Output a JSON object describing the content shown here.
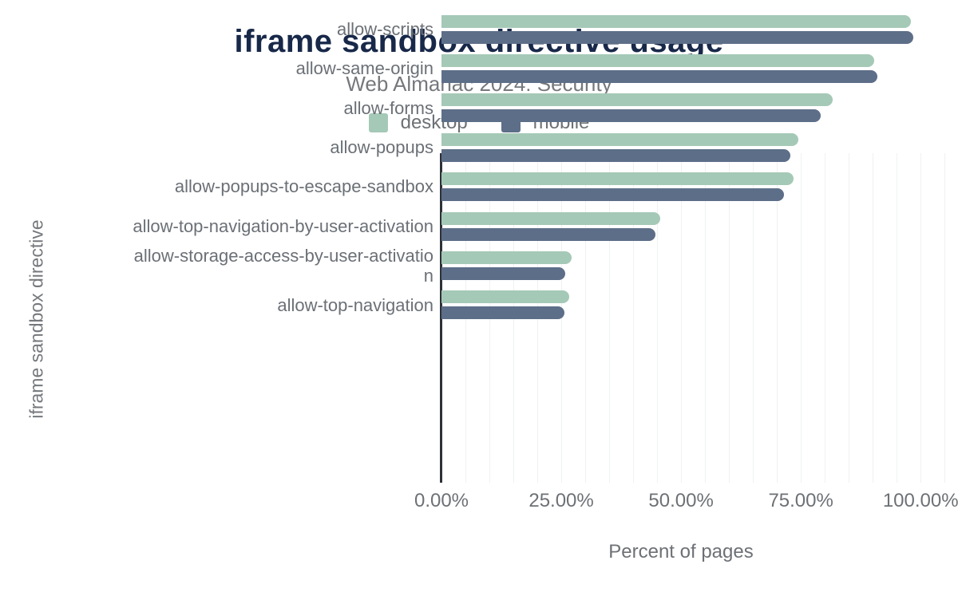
{
  "title": "iframe sandbox directive usage",
  "subtitle": "Web Almanac 2024: Security",
  "x_axis_title": "Percent of pages",
  "y_axis_title": "iframe sandbox directive",
  "colors": {
    "title": "#182849",
    "desktop_bar": "#a5c9b7",
    "mobile_bar": "#5d6e88",
    "axis_line": "#2d3138",
    "gridline": "#f0f1f2",
    "muted_text": "#6d7175"
  },
  "chart_data": {
    "type": "bar",
    "orientation": "horizontal",
    "title": "iframe sandbox directive usage",
    "subtitle": "Web Almanac 2024: Security",
    "xlabel": "Percent of pages",
    "ylabel": "iframe sandbox directive",
    "xlim": [
      0,
      105.3
    ],
    "x_tick_values": [
      0,
      25,
      50,
      75,
      100
    ],
    "x_tick_labels": [
      "0.00%",
      "25.00%",
      "50.00%",
      "75.00%",
      "100.00%"
    ],
    "minor_gridline_step": 5,
    "grid": "vertical-only",
    "legend_position": "top",
    "categories": [
      "allow-scripts",
      "allow-same-origin",
      "allow-forms",
      "allow-popups",
      "allow-popups-to-escape-sandbox",
      "allow-top-navigation-by-user-activation",
      "allow-storage-access-by-user-activation",
      "allow-top-navigation"
    ],
    "category_label_lines": [
      [
        "allow-scripts"
      ],
      [
        "allow-same-origin"
      ],
      [
        "allow-forms"
      ],
      [
        "allow-popups"
      ],
      [
        "allow-popups-to-escape-sandbox"
      ],
      [
        "allow-top-navigation-by-user-activation"
      ],
      [
        "allow-storage-access-by-user-activatio",
        "n"
      ],
      [
        "allow-top-navigation"
      ]
    ],
    "series": [
      {
        "name": "desktop",
        "color": "#a5c9b7",
        "values": [
          97.9,
          90.3,
          81.6,
          74.4,
          73.4,
          45.7,
          27.1,
          26.7
        ]
      },
      {
        "name": "mobile",
        "color": "#5d6e88",
        "values": [
          98.4,
          90.9,
          79.1,
          72.8,
          71.5,
          44.6,
          25.9,
          25.6
        ]
      }
    ]
  }
}
